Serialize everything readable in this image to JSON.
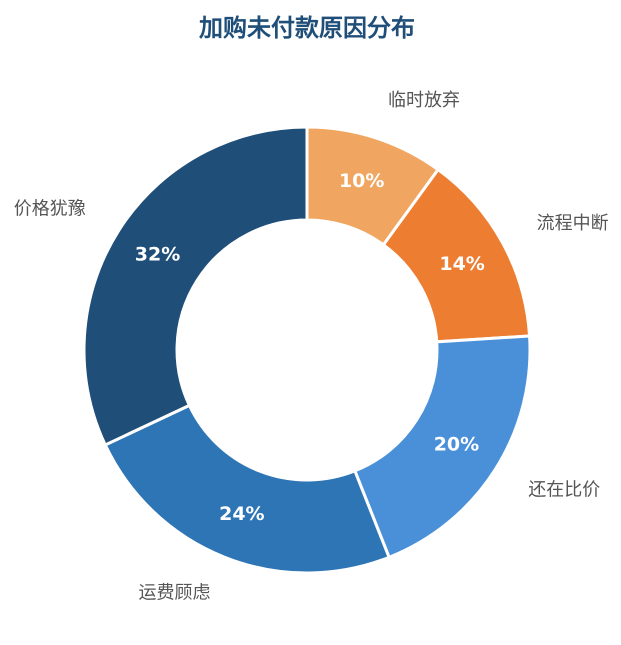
{
  "chart_data": {
    "type": "donut",
    "title": "加购未付款原因分布",
    "categories": [
      "临时放弃",
      "流程中断",
      "还在比价",
      "运费顾虑",
      "价格犹豫"
    ],
    "values": [
      10,
      14,
      20,
      24,
      32
    ],
    "value_labels": [
      "10%",
      "14%",
      "20%",
      "24%",
      "32%"
    ],
    "colors": [
      "#f0a660",
      "#ed7d31",
      "#4a90d9",
      "#2e75b6",
      "#1f4e79"
    ]
  }
}
